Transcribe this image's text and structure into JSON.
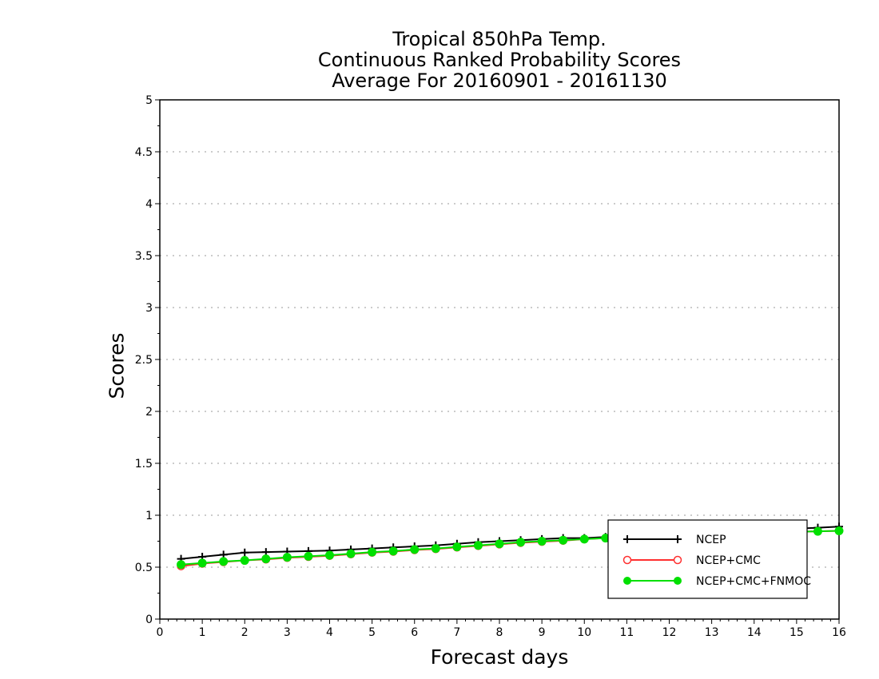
{
  "chart_data": {
    "type": "line",
    "title": [
      "Tropical 850hPa Temp.",
      "Continuous Ranked Probability Scores",
      "Average For 20160901 - 20161130"
    ],
    "xlabel": "Forecast days",
    "ylabel": "Scores",
    "xlim": [
      0,
      16
    ],
    "ylim": [
      0,
      5
    ],
    "xticks": [
      "0",
      "1",
      "2",
      "3",
      "4",
      "5",
      "6",
      "7",
      "8",
      "9",
      "10",
      "11",
      "12",
      "13",
      "14",
      "15",
      "16"
    ],
    "yticks": [
      "0",
      "0.5",
      "1",
      "1.5",
      "2",
      "2.5",
      "3",
      "3.5",
      "4",
      "4.5",
      "5"
    ],
    "grid": "horizontal dotted",
    "legend_position": "bottom-right",
    "x": [
      0.5,
      1,
      1.5,
      2,
      2.5,
      3,
      3.5,
      4,
      4.5,
      5,
      5.5,
      6,
      6.5,
      7,
      7.5,
      8,
      8.5,
      9,
      9.5,
      10,
      10.5,
      11,
      11.5,
      12,
      12.5,
      13,
      13.5,
      14,
      14.5,
      15,
      15.5,
      16
    ],
    "series": [
      {
        "name": "NCEP",
        "color": "#000000",
        "marker": "plus",
        "values": [
          0.58,
          0.6,
          0.62,
          0.64,
          0.645,
          0.65,
          0.655,
          0.66,
          0.67,
          0.68,
          0.69,
          0.7,
          0.71,
          0.725,
          0.74,
          0.75,
          0.76,
          0.77,
          0.78,
          0.78,
          0.79,
          0.8,
          0.81,
          0.82,
          0.83,
          0.84,
          0.85,
          0.855,
          0.86,
          0.87,
          0.88,
          0.89
        ]
      },
      {
        "name": "NCEP+CMC",
        "color": "#ff3030",
        "marker": "open-circle",
        "values": [
          0.51,
          0.535,
          0.55,
          0.565,
          0.575,
          0.59,
          0.6,
          0.61,
          0.625,
          0.64,
          0.65,
          0.665,
          0.675,
          0.69,
          0.705,
          0.72,
          0.735,
          0.745,
          0.755,
          0.77,
          0.78,
          0.79,
          0.8,
          0.805,
          0.81,
          0.82,
          0.825,
          0.83,
          0.835,
          0.84,
          0.845,
          0.85
        ]
      },
      {
        "name": "NCEP+CMC+FNMOC",
        "color": "#00e000",
        "marker": "filled-circle",
        "values": [
          0.525,
          0.54,
          0.555,
          0.565,
          0.58,
          0.595,
          0.605,
          0.615,
          0.63,
          0.645,
          0.655,
          0.67,
          0.68,
          0.695,
          0.71,
          0.725,
          0.74,
          0.75,
          0.76,
          0.77,
          0.78,
          0.79,
          0.8,
          0.805,
          0.81,
          0.82,
          0.825,
          0.83,
          0.835,
          0.84,
          0.845,
          0.85
        ]
      }
    ]
  }
}
